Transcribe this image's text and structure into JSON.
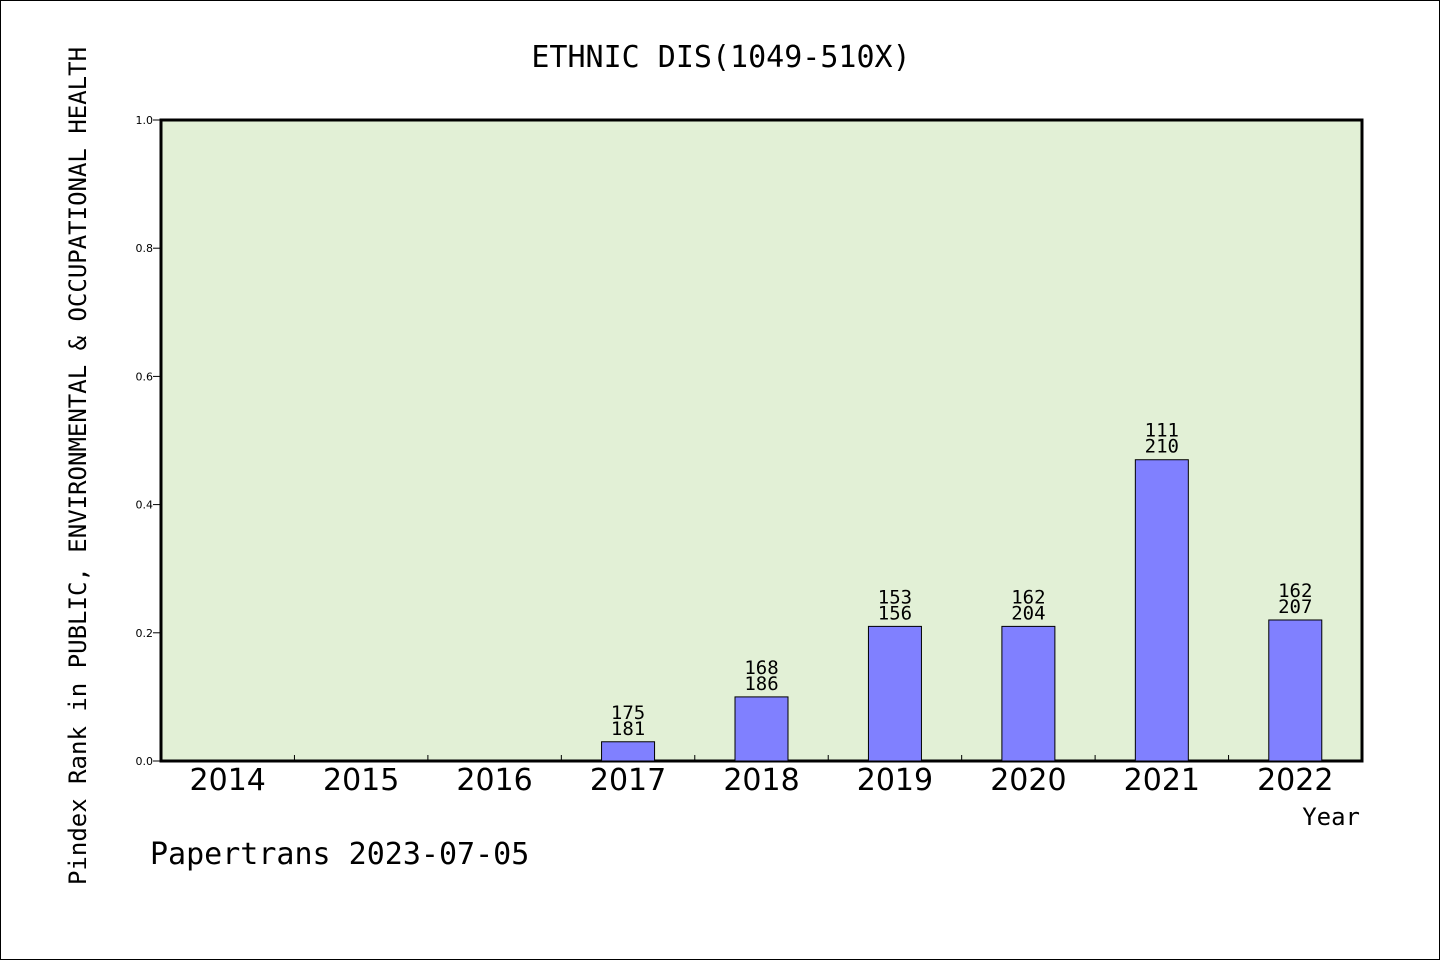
{
  "chart_data": {
    "type": "bar",
    "title": "ETHNIC DIS(1049-510X)",
    "xlabel": "Year",
    "ylabel": "Pindex Rank in PUBLIC, ENVIRONMENTAL & OCCUPATIONAL HEALTH",
    "ylim": [
      0,
      1.0
    ],
    "yticks": [
      "0.0",
      "0.2",
      "0.4",
      "0.6",
      "0.8",
      "1.0"
    ],
    "categories": [
      "2014",
      "2015",
      "2016",
      "2017",
      "2018",
      "2019",
      "2020",
      "2021",
      "2022"
    ],
    "values": [
      0,
      0,
      0,
      0.03,
      0.1,
      0.21,
      0.21,
      0.47,
      0.22
    ],
    "labels_top": [
      "",
      "",
      "",
      "175",
      "168",
      "153",
      "162",
      "111",
      "162"
    ],
    "labels_bottom": [
      "",
      "",
      "",
      "181",
      "186",
      "156",
      "204",
      "210",
      "207"
    ],
    "bar_color": "#8080ff",
    "plot_background": "#e2f0d6",
    "grid": false
  },
  "footer": "Papertrans 2023-07-05"
}
